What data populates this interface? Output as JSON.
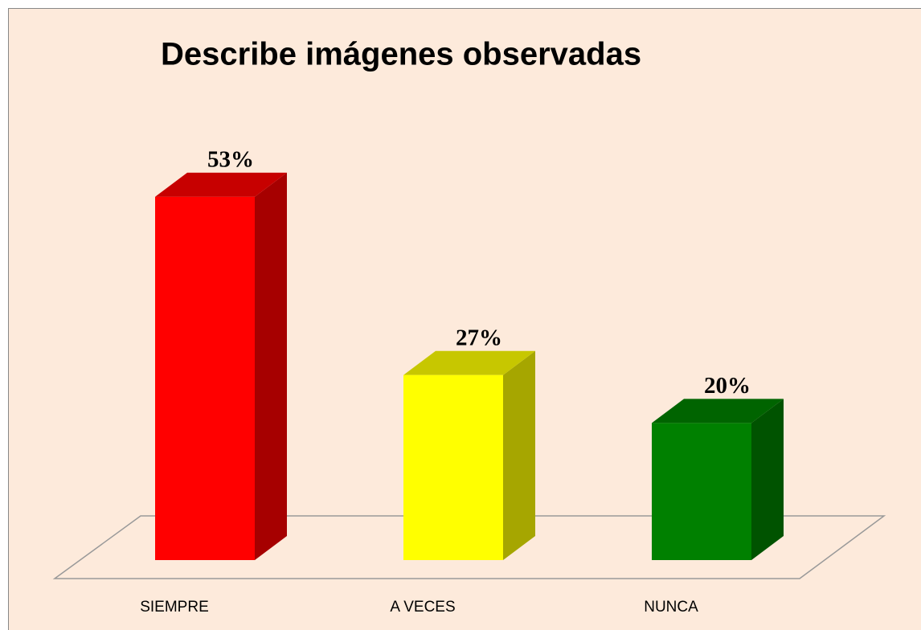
{
  "chart_data": {
    "type": "bar3d",
    "title": "Describe imágenes observadas",
    "categories": [
      "SIEMPRE",
      "A VECES",
      "NUNCA"
    ],
    "values": [
      53,
      27,
      20
    ],
    "value_labels": [
      "53%",
      "27%",
      "20%"
    ],
    "colors": [
      "#ff0000",
      "#ffff00",
      "#008000"
    ]
  }
}
